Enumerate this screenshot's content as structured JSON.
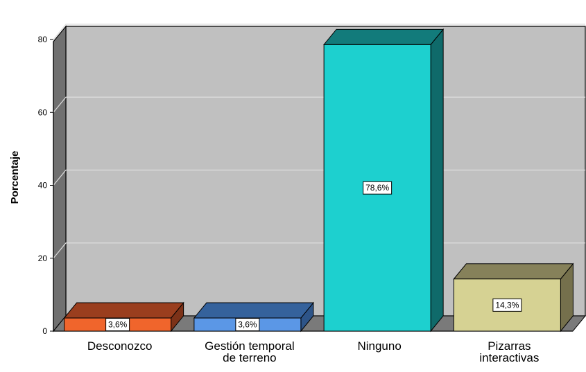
{
  "chart_data": {
    "type": "bar",
    "ylabel": "Porcentaje",
    "xlabel": "",
    "ylim": [
      0,
      80
    ],
    "yticks": [
      0,
      20,
      40,
      60,
      80
    ],
    "grid": true,
    "three_d": true,
    "categories": [
      [
        "Desconozco"
      ],
      [
        "Gestión temporal",
        "de terreno"
      ],
      [
        "Ninguno"
      ],
      [
        "Pizarras",
        "interactivas"
      ]
    ],
    "values": [
      3.6,
      3.6,
      78.6,
      14.3
    ],
    "data_labels": [
      "3,6%",
      "3,6%",
      "78,6%",
      "14,3%"
    ],
    "colors": [
      {
        "front": "#f0652c",
        "top": "#9a3e1e",
        "side": "#7c3218"
      },
      {
        "front": "#5b97e6",
        "top": "#35629c",
        "side": "#2d5488"
      },
      {
        "front": "#1dd0cf",
        "top": "#127b7b",
        "side": "#0f6a6a"
      },
      {
        "front": "#d6d293",
        "top": "#86815a",
        "side": "#75704c"
      }
    ],
    "background": {
      "back_wall": "#c0c0c0",
      "side_wall": "#707070",
      "floor": "#7a7a7a",
      "gridline": "#dedede"
    }
  }
}
